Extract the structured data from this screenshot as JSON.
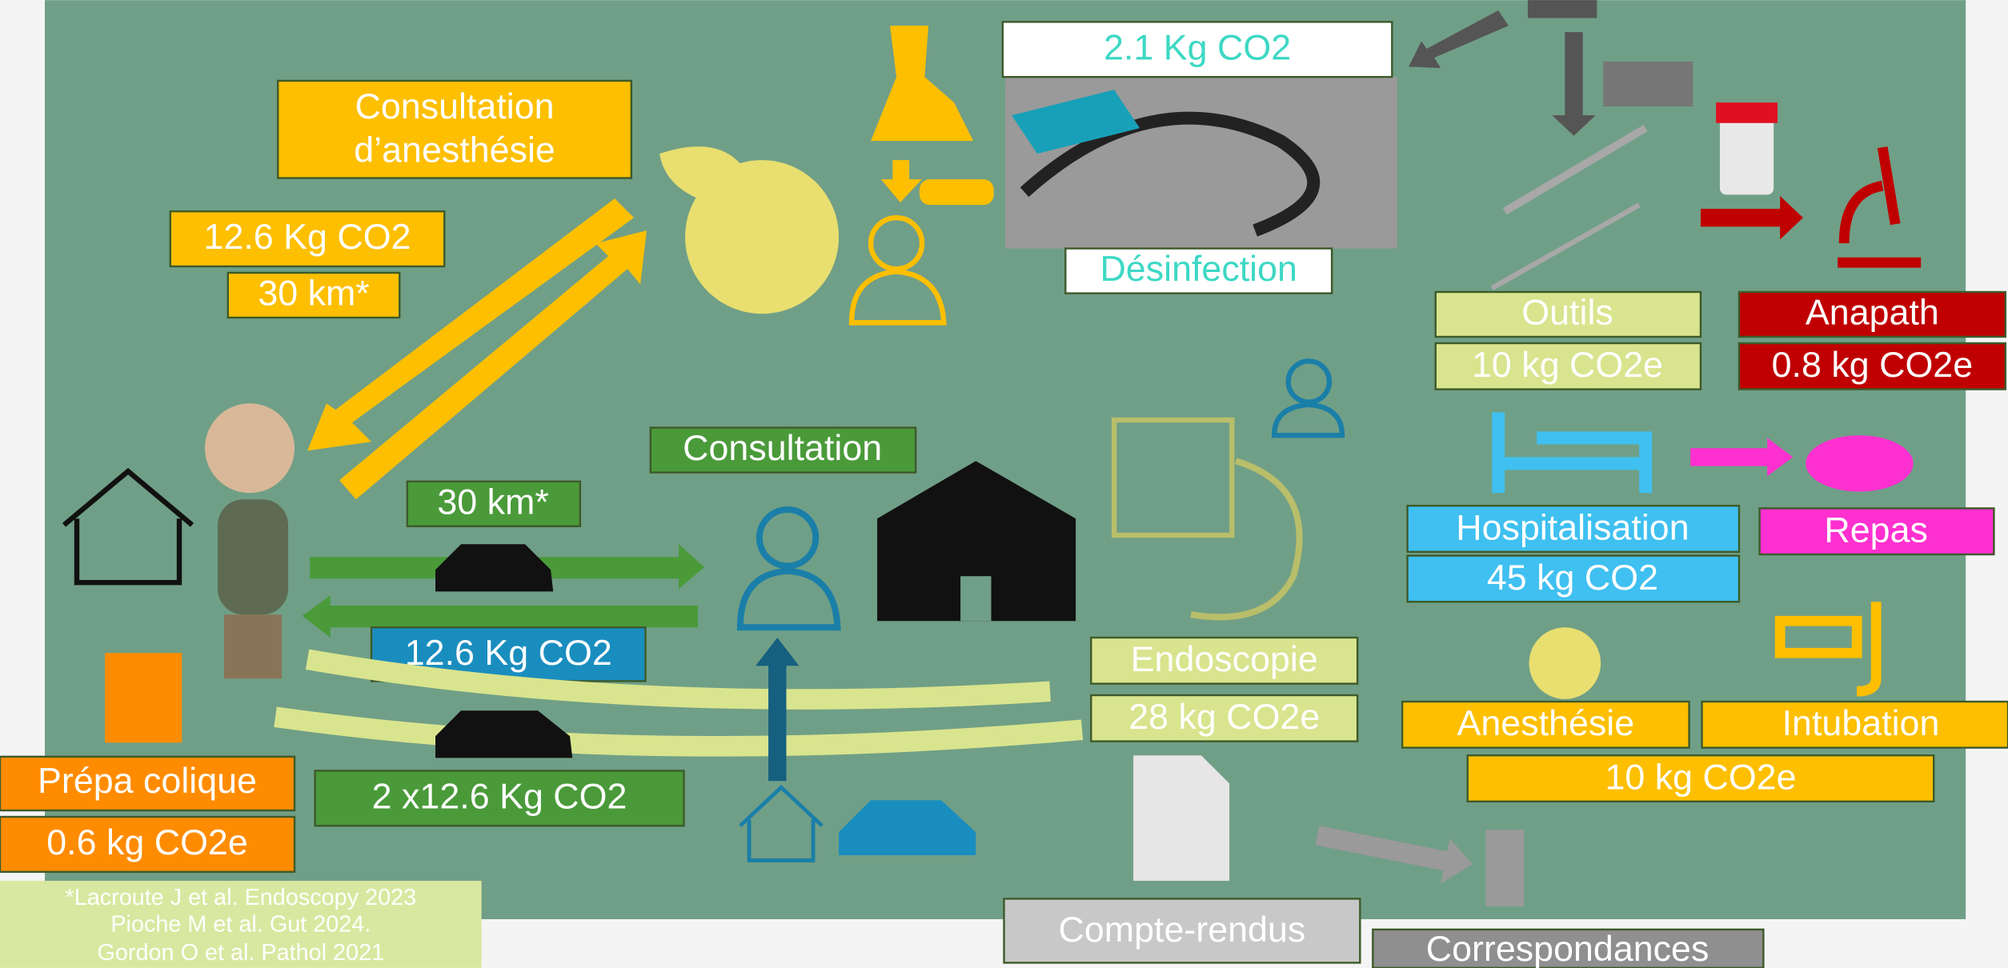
{
  "disinfection": {
    "co2": "2.1 Kg CO2",
    "label": "Désinfection"
  },
  "anesthesia_consult": {
    "title": [
      "Consultation",
      "d’anesthésie"
    ],
    "co2": "12.6 Kg CO2",
    "distance": "30 km*"
  },
  "consultation": {
    "title": "Consultation",
    "distance": "30 km*",
    "co2": "12.6 Kg CO2"
  },
  "trip": {
    "co2": "2 x12.6 Kg CO2"
  },
  "prep": {
    "label": "Prépa colique",
    "co2": "0.6 kg CO2e"
  },
  "endoscopy": {
    "label": "Endoscopie",
    "co2": "28 kg CO2e"
  },
  "report": {
    "label": "Compte-rendus"
  },
  "letters": {
    "label": "Correspondances"
  },
  "tools": {
    "label": "Outils",
    "co2": "10 kg CO2e"
  },
  "pathology": {
    "label": "Anapath",
    "co2": "0.8 kg CO2e"
  },
  "hospital": {
    "label": "Hospitalisation",
    "co2": "45 kg CO2"
  },
  "meal": {
    "label": "Repas"
  },
  "anesthesia": {
    "label": "Anesthésie"
  },
  "intubation": {
    "label": "Intubation",
    "co2": "10 kg CO2e"
  },
  "references": [
    "*Lacroute J et al. Endoscopy 2023",
    "Pioche M et al. Gut 2024.",
    "Gordon O et al. Pathol 2021"
  ]
}
